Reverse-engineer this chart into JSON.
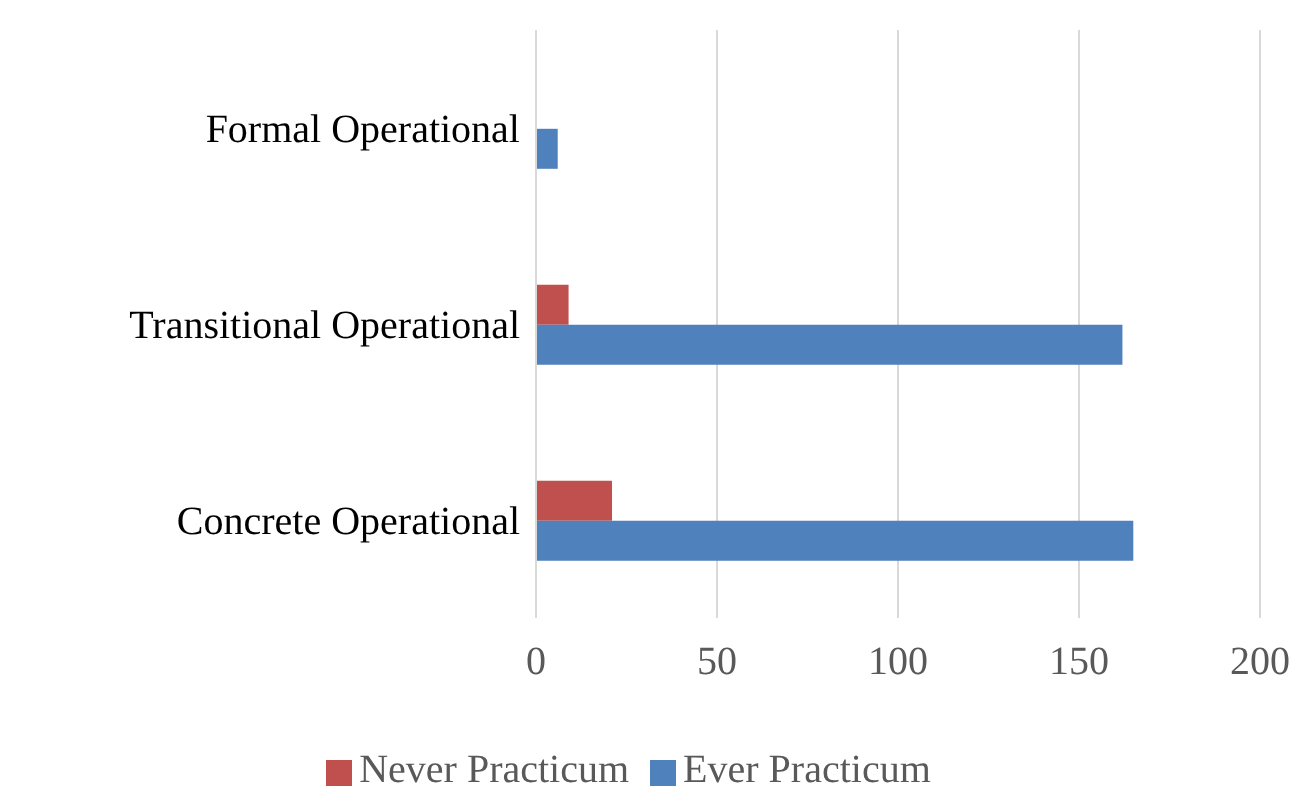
{
  "chart_data": {
    "type": "bar",
    "orientation": "horizontal",
    "categories": [
      "Formal Operational",
      "Transitional Operational",
      "Concrete Operational"
    ],
    "series": [
      {
        "name": "Never Practicum",
        "color": "#c0504d",
        "values": [
          0,
          9,
          21
        ]
      },
      {
        "name": "Ever Practicum",
        "color": "#4f81bd",
        "values": [
          6,
          162,
          165
        ]
      }
    ],
    "xlim": [
      0,
      200
    ],
    "xticks": [
      0,
      50,
      100,
      150,
      200
    ],
    "grid": "x",
    "legend": "bottom"
  }
}
